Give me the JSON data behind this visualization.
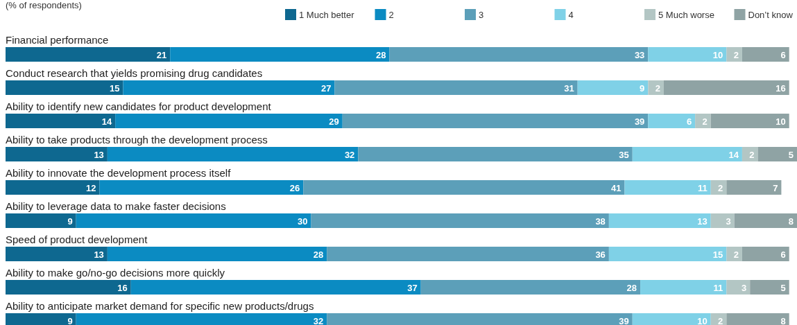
{
  "chart_data": {
    "type": "bar",
    "orientation": "horizontal",
    "stacked": true,
    "subtitle": "(% of respondents)",
    "data_labels": true,
    "legend": "top right",
    "tick_labels": "y",
    "xlim": [
      0,
      101
    ],
    "categories": [
      "Financial performance",
      "Conduct research that yields promising drug candidates",
      "Ability to identify new candidates for product development",
      "Ability to take products through the development process",
      "Ability to innovate the development process itself",
      "Ability to leverage data to make faster decisions",
      "Speed of product development",
      "Ability to make go/no-go decisions more quickly",
      "Ability to anticipate market demand for specific new products/drugs"
    ],
    "series": [
      {
        "name": "1 Much better",
        "color": "#0e6890",
        "values": [
          21,
          15,
          14,
          13,
          12,
          9,
          13,
          16,
          9
        ]
      },
      {
        "name": "2",
        "color": "#0b8bc2",
        "values": [
          28,
          27,
          29,
          32,
          26,
          30,
          28,
          37,
          32
        ]
      },
      {
        "name": "3",
        "color": "#5c9fb9",
        "values": [
          33,
          31,
          39,
          35,
          41,
          38,
          36,
          28,
          39
        ]
      },
      {
        "name": "4",
        "color": "#7fd1e7",
        "values": [
          10,
          9,
          6,
          14,
          11,
          13,
          15,
          11,
          10
        ]
      },
      {
        "name": "5 Much worse",
        "color": "#b3c6c4",
        "values": [
          2,
          2,
          2,
          2,
          2,
          3,
          2,
          3,
          2
        ]
      },
      {
        "name": "Don’t know",
        "color": "#8fa3a4",
        "values": [
          6,
          16,
          10,
          5,
          7,
          8,
          6,
          5,
          8
        ]
      }
    ]
  }
}
